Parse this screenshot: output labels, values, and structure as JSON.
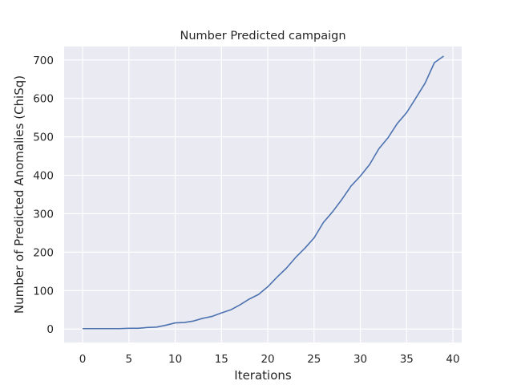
{
  "chart_data": {
    "type": "line",
    "title": "Number Predicted campaign",
    "xlabel": "Iterations",
    "ylabel": "Number of Predicted Anomalies (ChiSq)",
    "xlim": [
      -2,
      40.95
    ],
    "ylim": [
      -35,
      735
    ],
    "xticks": [
      0,
      5,
      10,
      15,
      20,
      25,
      30,
      35,
      40
    ],
    "yticks": [
      0,
      100,
      200,
      300,
      400,
      500,
      600,
      700
    ],
    "grid": true,
    "legend": "none",
    "colors": {
      "background": "#eaeaf2",
      "grid": "#ffffff",
      "line": "#4c72b0"
    },
    "series": [
      {
        "x": [
          0,
          1,
          2,
          3,
          4,
          5,
          6,
          7,
          8,
          9,
          10,
          11,
          12,
          13,
          14,
          15,
          16,
          17,
          18,
          19,
          20,
          21,
          22,
          23,
          24,
          25,
          26,
          27,
          28,
          29,
          30,
          31,
          32,
          33,
          34,
          35,
          36,
          37,
          38,
          39
        ],
        "values": [
          1,
          1,
          1,
          1,
          1,
          2,
          2,
          4,
          5,
          10,
          16,
          17,
          21,
          28,
          33,
          42,
          50,
          63,
          78,
          90,
          110,
          135,
          158,
          186,
          210,
          237,
          277,
          305,
          337,
          372,
          398,
          428,
          469,
          498,
          535,
          563,
          601,
          640,
          693,
          710
        ]
      }
    ]
  }
}
